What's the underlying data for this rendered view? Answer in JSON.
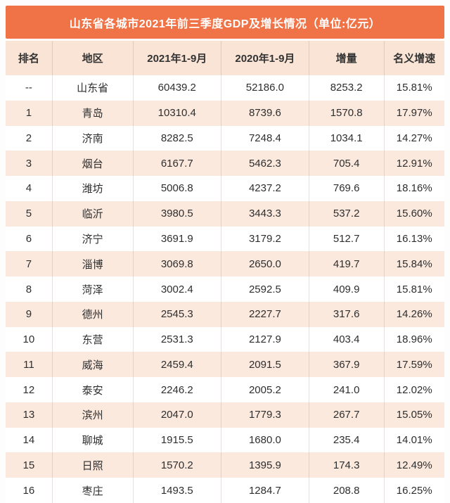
{
  "title": "山东省各城市2021年前三季度GDP及增长情况（单位:亿元）",
  "colors": {
    "banner_orange": "#EF7346",
    "header_row_peach": "#F9E4D6",
    "alt_row_peach": "#FBE9DE",
    "row_white": "#FFFFFF",
    "title_text": "#FFFFFF",
    "body_text": "#2E2E2E"
  },
  "chart_data": {
    "type": "table",
    "title": "山东省各城市2021年前三季度GDP及增长情况（单位:亿元）",
    "columns": [
      "排名",
      "地区",
      "2021年1-9月",
      "2020年1-9月",
      "增量",
      "名义增速"
    ],
    "rows": [
      [
        "--",
        "山东省",
        "60439.2",
        "52186.0",
        "8253.2",
        "15.81%"
      ],
      [
        "1",
        "青岛",
        "10310.4",
        "8739.6",
        "1570.8",
        "17.97%"
      ],
      [
        "2",
        "济南",
        "8282.5",
        "7248.4",
        "1034.1",
        "14.27%"
      ],
      [
        "3",
        "烟台",
        "6167.7",
        "5462.3",
        "705.4",
        "12.91%"
      ],
      [
        "4",
        "潍坊",
        "5006.8",
        "4237.2",
        "769.6",
        "18.16%"
      ],
      [
        "5",
        "临沂",
        "3980.5",
        "3443.3",
        "537.2",
        "15.60%"
      ],
      [
        "6",
        "济宁",
        "3691.9",
        "3179.2",
        "512.7",
        "16.13%"
      ],
      [
        "7",
        "淄博",
        "3069.8",
        "2650.0",
        "419.7",
        "15.84%"
      ],
      [
        "8",
        "菏泽",
        "3002.4",
        "2592.5",
        "409.9",
        "15.81%"
      ],
      [
        "9",
        "德州",
        "2545.3",
        "2227.7",
        "317.6",
        "14.26%"
      ],
      [
        "10",
        "东营",
        "2531.3",
        "2127.9",
        "403.4",
        "18.96%"
      ],
      [
        "11",
        "威海",
        "2459.4",
        "2091.5",
        "367.9",
        "17.59%"
      ],
      [
        "12",
        "泰安",
        "2246.2",
        "2005.2",
        "241.0",
        "12.02%"
      ],
      [
        "13",
        "滨州",
        "2047.0",
        "1779.3",
        "267.7",
        "15.05%"
      ],
      [
        "14",
        "聊城",
        "1915.5",
        "1680.0",
        "235.4",
        "14.01%"
      ],
      [
        "15",
        "日照",
        "1570.2",
        "1395.9",
        "174.3",
        "12.49%"
      ],
      [
        "16",
        "枣庄",
        "1493.5",
        "1284.7",
        "208.8",
        "16.25%"
      ]
    ],
    "column_keys": [
      "rank",
      "region",
      "gdp-2021",
      "gdp-2020",
      "increment",
      "nominal-growth"
    ]
  }
}
